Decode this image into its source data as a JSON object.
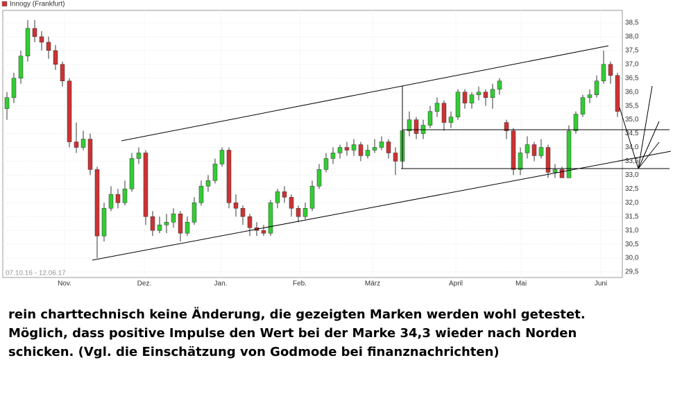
{
  "chart_data": {
    "type": "candlestick",
    "series": [
      {
        "name": "Innogy (Frankfurt)",
        "color": "#cc3333"
      }
    ],
    "up_color": "#33cc33",
    "down_color": "#cc3333",
    "date_range": "07.10.16 - 12.06.17",
    "xlim": [
      0,
      89
    ],
    "xticks": [
      {
        "value": 8.8,
        "label": "Nov."
      },
      {
        "value": 20.3,
        "label": "Dez."
      },
      {
        "value": 31.3,
        "label": "Jan."
      },
      {
        "value": 42.7,
        "label": "Feb."
      },
      {
        "value": 53.2,
        "label": "März"
      },
      {
        "value": 65.2,
        "label": "April"
      },
      {
        "value": 74.6,
        "label": "Mai"
      },
      {
        "value": 86.1,
        "label": "Juni"
      }
    ],
    "ylim": [
      29.3,
      38.95
    ],
    "yticks": [
      {
        "value": 29.5,
        "label": "29,5"
      },
      {
        "value": 30.0,
        "label": "30,0"
      },
      {
        "value": 30.5,
        "label": "30,5"
      },
      {
        "value": 31.0,
        "label": "31,0"
      },
      {
        "value": 31.5,
        "label": "31,5"
      },
      {
        "value": 32.0,
        "label": "32,0"
      },
      {
        "value": 32.5,
        "label": "32,5"
      },
      {
        "value": 33.0,
        "label": "33,0"
      },
      {
        "value": 33.5,
        "label": "33,5"
      },
      {
        "value": 34.0,
        "label": "34,0"
      },
      {
        "value": 34.5,
        "label": "34,5"
      },
      {
        "value": 35.0,
        "label": "35,0"
      },
      {
        "value": 35.5,
        "label": "35,5"
      },
      {
        "value": 36.0,
        "label": "36,0"
      },
      {
        "value": 36.5,
        "label": "36,5"
      },
      {
        "value": 37.0,
        "label": "37,0"
      },
      {
        "value": 37.5,
        "label": "37,5"
      },
      {
        "value": 38.0,
        "label": "38,0"
      },
      {
        "value": 38.5,
        "label": "38,5"
      }
    ],
    "grid": true,
    "open": [
      35.4,
      35.8,
      36.5,
      37.3,
      38.3,
      38.0,
      37.8,
      37.5,
      37.0,
      36.4,
      34.2,
      34.0,
      34.3,
      33.2,
      30.8,
      31.8,
      32.3,
      32.0,
      32.5,
      33.6,
      33.8,
      31.5,
      31.0,
      31.2,
      31.3,
      31.6,
      30.9,
      31.3,
      32.0,
      32.6,
      32.8,
      33.4,
      33.9,
      32.0,
      31.8,
      31.5,
      31.1,
      31.0,
      30.9,
      32.0,
      32.4,
      32.2,
      31.8,
      31.5,
      31.8,
      32.6,
      33.2,
      33.6,
      33.8,
      34.0,
      33.9,
      34.1,
      33.7,
      33.9,
      34.0,
      34.2,
      33.8,
      33.5,
      34.6,
      35.0,
      34.5,
      34.8,
      35.3,
      35.6,
      34.9,
      35.1,
      36.0,
      35.6,
      35.9,
      36.0,
      35.8,
      36.1,
      34.9,
      34.6,
      33.2,
      33.8,
      34.1,
      33.7,
      34.0,
      33.1,
      33.2,
      32.9,
      34.6,
      35.2,
      35.8,
      35.9,
      36.4,
      37.0,
      36.6
    ],
    "high": [
      36.0,
      36.7,
      37.5,
      38.6,
      38.6,
      38.2,
      38.0,
      37.7,
      37.1,
      36.5,
      34.9,
      34.6,
      34.5,
      33.3,
      32.0,
      32.6,
      32.5,
      32.8,
      33.8,
      34.0,
      33.9,
      31.7,
      31.5,
      31.6,
      31.8,
      31.7,
      31.5,
      32.2,
      32.8,
      33.0,
      33.6,
      34.0,
      34.0,
      32.3,
      31.9,
      31.6,
      31.3,
      31.2,
      32.1,
      32.5,
      32.6,
      32.3,
      31.9,
      32.0,
      32.8,
      33.4,
      33.8,
      34.0,
      34.1,
      34.2,
      34.3,
      34.2,
      34.1,
      34.3,
      34.4,
      34.3,
      34.0,
      36.0,
      35.3,
      35.1,
      35.0,
      35.5,
      35.8,
      35.7,
      35.3,
      36.1,
      36.1,
      36.0,
      36.2,
      36.1,
      36.3,
      36.5,
      35.0,
      34.7,
      34.0,
      34.4,
      34.2,
      34.3,
      34.1,
      33.4,
      33.3,
      34.8,
      35.3,
      35.9,
      36.1,
      36.6,
      37.5,
      37.1,
      36.7
    ],
    "low": [
      35.0,
      35.6,
      36.3,
      37.1,
      37.8,
      37.5,
      37.2,
      36.8,
      36.2,
      34.0,
      33.8,
      33.9,
      33.0,
      30.0,
      30.6,
      31.7,
      31.8,
      31.9,
      32.4,
      33.4,
      31.2,
      30.8,
      30.9,
      30.9,
      31.1,
      30.6,
      30.8,
      31.2,
      31.9,
      32.4,
      32.7,
      33.3,
      31.8,
      31.5,
      31.2,
      30.8,
      30.8,
      30.8,
      30.8,
      31.8,
      32.0,
      31.5,
      31.3,
      31.4,
      31.7,
      32.5,
      33.1,
      33.4,
      33.6,
      33.7,
      33.7,
      33.5,
      33.6,
      33.8,
      33.9,
      33.6,
      33.0,
      33.4,
      34.4,
      34.3,
      34.3,
      34.7,
      35.1,
      34.6,
      34.7,
      35.0,
      35.4,
      35.4,
      35.7,
      35.5,
      35.4,
      35.9,
      34.3,
      33.0,
      33.0,
      33.6,
      33.5,
      33.6,
      32.9,
      32.9,
      32.9,
      32.9,
      34.5,
      35.1,
      35.6,
      35.8,
      36.3,
      36.3,
      35.1
    ],
    "close": [
      35.8,
      36.5,
      37.3,
      38.3,
      38.0,
      37.8,
      37.5,
      37.0,
      36.4,
      34.2,
      34.0,
      34.3,
      33.2,
      30.8,
      31.8,
      32.3,
      32.0,
      32.5,
      33.6,
      33.8,
      31.5,
      31.0,
      31.2,
      31.3,
      31.6,
      30.9,
      31.3,
      32.0,
      32.6,
      32.8,
      33.4,
      33.9,
      32.0,
      31.8,
      31.5,
      31.1,
      31.0,
      30.9,
      32.0,
      32.4,
      32.2,
      31.8,
      31.5,
      31.8,
      32.6,
      33.2,
      33.6,
      33.8,
      34.0,
      33.9,
      34.1,
      33.7,
      33.9,
      34.0,
      34.2,
      33.8,
      33.5,
      34.6,
      35.0,
      34.5,
      34.8,
      35.3,
      35.6,
      34.9,
      35.1,
      36.0,
      35.6,
      35.9,
      36.0,
      35.8,
      36.1,
      36.4,
      34.6,
      33.2,
      33.8,
      34.1,
      33.7,
      34.0,
      33.1,
      33.2,
      32.9,
      34.6,
      35.2,
      35.8,
      35.9,
      36.4,
      37.0,
      36.6,
      35.3
    ]
  },
  "text": [
    "rein charttechnisch keine Änderung, die gezeigten Marken werden wohl getestet.",
    "Möglich, dass positive Impulse den Wert bei der Marke 34,3 wieder nach Norden",
    "schicken.  (Vgl. die Einschätzung von Godmode bei finanznachrichten)"
  ]
}
